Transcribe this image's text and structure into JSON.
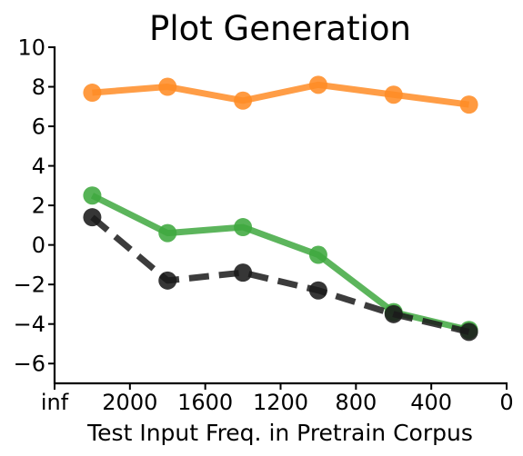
{
  "chart_data": {
    "type": "line",
    "title": "Plot Generation",
    "xlabel": "Test Input Freq. in Pretrain Corpus",
    "ylabel": "",
    "x_tick_labels": [
      "inf",
      "2000",
      "1600",
      "1200",
      "800",
      "400",
      "0"
    ],
    "y_tick_labels": [
      "−6",
      "−4",
      "−2",
      "0",
      "2",
      "4",
      "6",
      "8",
      "10"
    ],
    "y_ticks": [
      -6,
      -4,
      -2,
      0,
      2,
      4,
      6,
      8,
      10
    ],
    "ylim": [
      -7,
      10
    ],
    "x_tick_positions": [
      0,
      1,
      2,
      3,
      4,
      5,
      6
    ],
    "x_point_positions": [
      0.5,
      1.5,
      2.5,
      3.5,
      4.5,
      5.5
    ],
    "grid": false,
    "series": [
      {
        "color": "#ff8c26",
        "line_style": "solid",
        "values": [
          7.7,
          8.0,
          7.3,
          8.1,
          7.6,
          7.1
        ]
      },
      {
        "color": "#3fa83f",
        "line_style": "solid",
        "values": [
          2.5,
          0.6,
          0.9,
          -0.5,
          -3.4,
          -4.3
        ]
      },
      {
        "color": "#1a1a1a",
        "line_style": "dashed",
        "values": [
          1.4,
          -1.8,
          -1.4,
          -2.3,
          -3.5,
          -4.4
        ]
      }
    ]
  }
}
